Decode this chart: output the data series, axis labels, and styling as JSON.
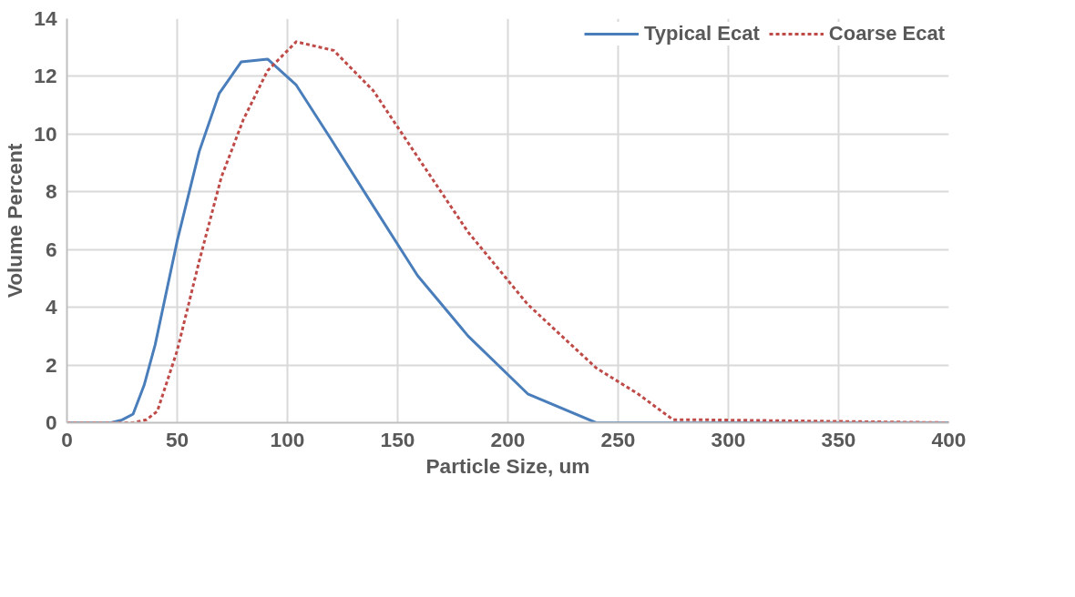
{
  "chart_data": {
    "type": "line",
    "xlabel": "Particle Size, um",
    "ylabel": "Volume Percent",
    "xlim": [
      0,
      400
    ],
    "xticks": [
      0,
      50,
      100,
      150,
      200,
      250,
      300,
      350,
      400
    ],
    "ylim": [
      0,
      14
    ],
    "yticks": [
      0,
      2,
      4,
      6,
      8,
      10,
      12,
      14
    ],
    "grid": true,
    "legend": "top right",
    "series": [
      {
        "name": "Typical Ecat",
        "color": "#4a7ebb",
        "line_style": "solid",
        "x": [
          0,
          20,
          25,
          30,
          35,
          40,
          50,
          60,
          69,
          79,
          91,
          104,
          120,
          139,
          159,
          182,
          209,
          240,
          400
        ],
        "values": [
          0,
          0,
          0.1,
          0.3,
          1.3,
          2.7,
          6.3,
          9.4,
          11.4,
          12.5,
          12.6,
          11.7,
          9.8,
          7.5,
          5.1,
          3.0,
          1.0,
          0,
          0
        ]
      },
      {
        "name": "Coarse Ecat",
        "color": "#be4b48",
        "line_style": "dashed",
        "x": [
          0,
          30,
          36,
          41,
          50,
          60,
          70,
          80,
          91,
          104,
          121,
          139,
          160,
          182,
          209,
          240,
          259,
          275,
          290,
          400
        ],
        "values": [
          0,
          0,
          0.1,
          0.4,
          2.5,
          5.6,
          8.5,
          10.5,
          12.2,
          13.2,
          12.9,
          11.5,
          9.1,
          6.6,
          4.1,
          1.9,
          1.0,
          0.1,
          0.1,
          0
        ]
      }
    ]
  }
}
